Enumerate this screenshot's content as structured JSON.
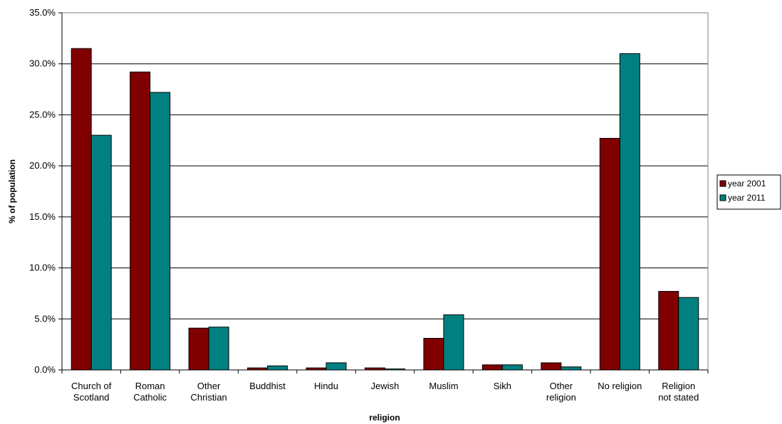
{
  "chart_data": {
    "type": "bar",
    "title": "",
    "xlabel": "religion",
    "ylabel": "% of population",
    "ylim": [
      0,
      35
    ],
    "y_ticks": [
      "0.0%",
      "5.0%",
      "10.0%",
      "15.0%",
      "20.0%",
      "25.0%",
      "30.0%",
      "35.0%"
    ],
    "grid": "horizontal",
    "legend_position": "right",
    "categories": [
      [
        "Church of",
        "Scotland"
      ],
      [
        "Roman",
        "Catholic"
      ],
      [
        "Other",
        "Christian"
      ],
      [
        "Buddhist"
      ],
      [
        "Hindu"
      ],
      [
        "Jewish"
      ],
      [
        "Muslim"
      ],
      [
        "Sikh"
      ],
      [
        "Other",
        "religion"
      ],
      [
        "No religion"
      ],
      [
        "Religion",
        "not stated"
      ]
    ],
    "series": [
      {
        "name": "year 2001",
        "color": "#800000",
        "values": [
          31.5,
          29.2,
          4.1,
          0.2,
          0.2,
          0.2,
          3.1,
          0.5,
          0.7,
          22.7,
          7.7
        ]
      },
      {
        "name": "year 2011",
        "color": "#008080",
        "values": [
          23.0,
          27.2,
          4.2,
          0.4,
          0.7,
          0.1,
          5.4,
          0.5,
          0.3,
          31.0,
          7.1
        ]
      }
    ]
  }
}
